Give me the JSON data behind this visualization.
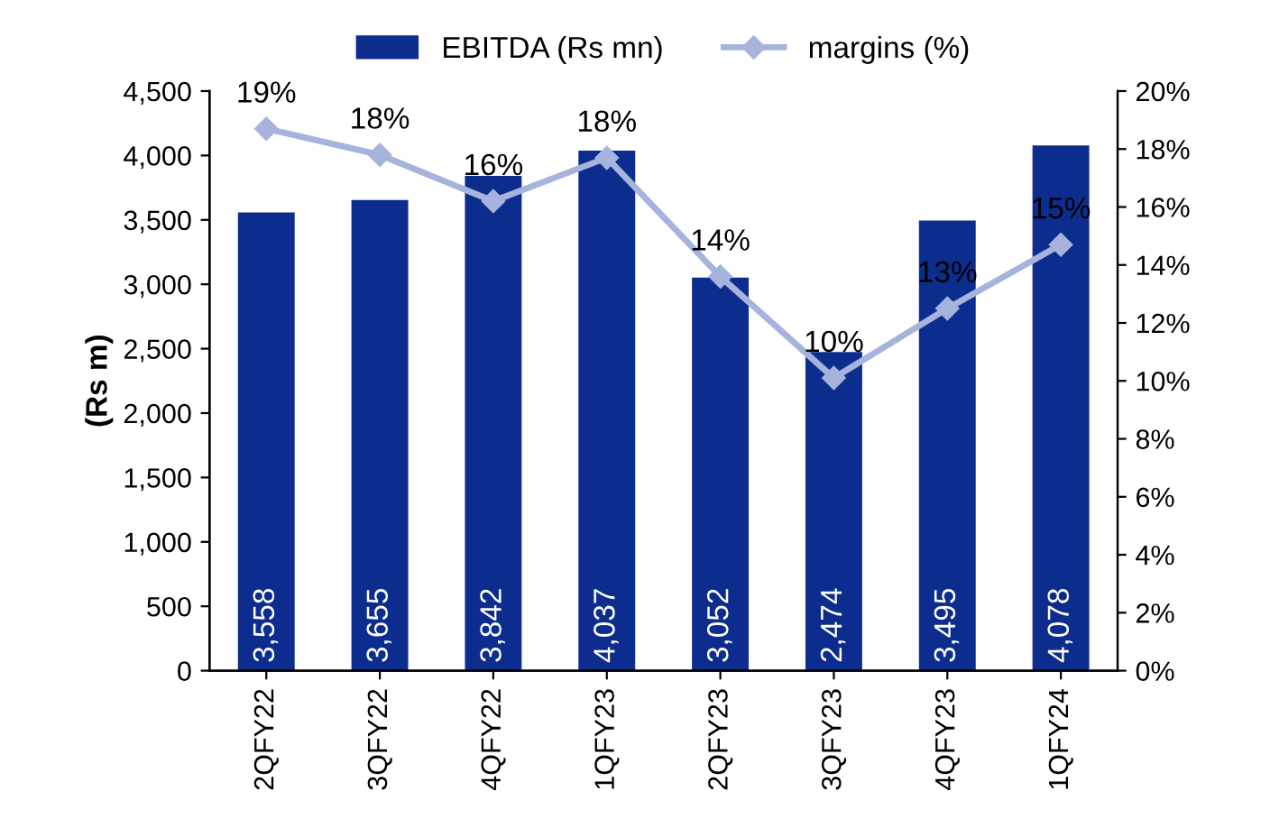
{
  "chart_data": {
    "type": "bar",
    "categories": [
      "2QFY22",
      "3QFY22",
      "4QFY22",
      "1QFY23",
      "2QFY23",
      "3QFY23",
      "4QFY23",
      "1QFY24"
    ],
    "ylabel": "(Rs m)",
    "series": [
      {
        "name": "EBITDA (Rs mn)",
        "color": "#0d2d8e",
        "values": [
          3558,
          3655,
          3842,
          4037,
          3052,
          2474,
          3495,
          4078
        ],
        "value_labels": [
          "3,558",
          "3,655",
          "3,842",
          "4,037",
          "3,052",
          "2,474",
          "3,495",
          "4,078"
        ]
      },
      {
        "name": "margins (%)",
        "type": "line",
        "axis": "y2",
        "color": "#a6b3dc",
        "marker": "diamond",
        "line_style": "solid",
        "values": [
          18.7,
          17.8,
          16.2,
          17.7,
          13.6,
          10.1,
          12.5,
          14.7
        ],
        "value_labels": [
          "19%",
          "18%",
          "16%",
          "18%",
          "14%",
          "10%",
          "13%",
          "15%"
        ]
      }
    ],
    "ylim": [
      0,
      4500
    ],
    "yticks": [
      0,
      500,
      {
        "value": 1000,
        "label": "1,000"
      },
      {
        "value": 1500,
        "label": "1,500"
      },
      {
        "value": 2000,
        "label": "2,000"
      },
      {
        "value": 2500,
        "label": "2,500"
      },
      {
        "value": 3000,
        "label": "3,000"
      },
      {
        "value": 3500,
        "label": "3,500"
      },
      {
        "value": 4000,
        "label": "4,000"
      },
      {
        "value": 4500,
        "label": "4,500"
      }
    ],
    "y2lim": [
      0,
      20
    ],
    "y2ticks": [
      {
        "value": 0,
        "label": "0%"
      },
      {
        "value": 2,
        "label": "2%"
      },
      {
        "value": 4,
        "label": "4%"
      },
      {
        "value": 6,
        "label": "6%"
      },
      {
        "value": 8,
        "label": "8%"
      },
      {
        "value": 10,
        "label": "10%"
      },
      {
        "value": 12,
        "label": "12%"
      },
      {
        "value": 14,
        "label": "14%"
      },
      {
        "value": 16,
        "label": "16%"
      },
      {
        "value": 18,
        "label": "18%"
      },
      {
        "value": 20,
        "label": "20%"
      }
    ],
    "grid": false,
    "legend": "top"
  }
}
